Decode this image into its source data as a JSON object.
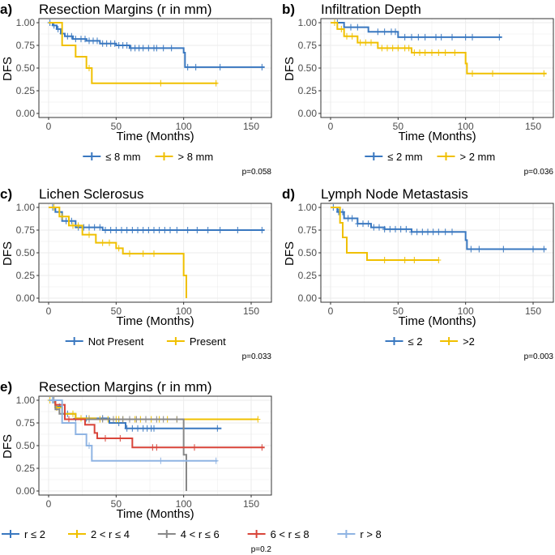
{
  "chart_data": [
    {
      "type": "line",
      "panel_label": "a)",
      "title": "Resection Margins (r in mm)",
      "xlabel": "Time (Months)",
      "ylabel": "DFS",
      "xlim": [
        0,
        160
      ],
      "ylim": [
        0,
        1
      ],
      "xticks": [
        0,
        50,
        100,
        150
      ],
      "yticks": [
        "0.00",
        "0.25",
        "0.50",
        "0.75",
        "1.00"
      ],
      "grid": true,
      "legend": "bottom",
      "p_value": "p=0.058",
      "series": [
        {
          "name": "≤ 8 mm",
          "color": "#3a78c0",
          "end": 160,
          "steps": [
            [
              0,
              1
            ],
            [
              3,
              0.97
            ],
            [
              6,
              0.93
            ],
            [
              9,
              0.88
            ],
            [
              12,
              0.85
            ],
            [
              18,
              0.82
            ],
            [
              28,
              0.8
            ],
            [
              38,
              0.77
            ],
            [
              50,
              0.75
            ],
            [
              60,
              0.72
            ],
            [
              100,
              0.67
            ],
            [
              101,
              0.51
            ]
          ],
          "censors": [
            1,
            4,
            7,
            10,
            14,
            17,
            20,
            24,
            27,
            30,
            33,
            36,
            40,
            43,
            46,
            49,
            52,
            55,
            58,
            61,
            64,
            67,
            70,
            74,
            78,
            80,
            85,
            91,
            103,
            109,
            127,
            158
          ]
        },
        {
          "name": "> 8 mm",
          "color": "#f0c000",
          "end": 125,
          "steps": [
            [
              0,
              1
            ],
            [
              10,
              0.75
            ],
            [
              20,
              0.625
            ],
            [
              28,
              0.5
            ],
            [
              32,
              0.333
            ]
          ],
          "censors": [
            30,
            83,
            124
          ]
        }
      ]
    },
    {
      "type": "line",
      "panel_label": "b)",
      "title": "Infiltration Depth",
      "xlabel": "Time (Months)",
      "ylabel": "DFS",
      "xlim": [
        0,
        160
      ],
      "ylim": [
        0,
        1
      ],
      "xticks": [
        0,
        50,
        100,
        150
      ],
      "yticks": [
        "0.00",
        "0.25",
        "0.50",
        "0.75",
        "1.00"
      ],
      "grid": true,
      "legend": "bottom",
      "p_value": "p=0.036",
      "series": [
        {
          "name": "≤ 2 mm",
          "color": "#3a78c0",
          "end": 127,
          "steps": [
            [
              0,
              1
            ],
            [
              10,
              0.95
            ],
            [
              28,
              0.9
            ],
            [
              50,
              0.84
            ]
          ],
          "censors": [
            5,
            15,
            20,
            35,
            40,
            45,
            48,
            55,
            60,
            65,
            70,
            78,
            82,
            90,
            100,
            105,
            125
          ]
        },
        {
          "name": "> 2 mm",
          "color": "#f0c000",
          "end": 160,
          "steps": [
            [
              0,
              1
            ],
            [
              5,
              0.93
            ],
            [
              10,
              0.85
            ],
            [
              20,
              0.78
            ],
            [
              35,
              0.72
            ],
            [
              60,
              0.67
            ],
            [
              100,
              0.55
            ],
            [
              101,
              0.44
            ]
          ],
          "censors": [
            3,
            8,
            12,
            16,
            22,
            26,
            30,
            38,
            42,
            46,
            50,
            55,
            58,
            62,
            66,
            70,
            75,
            80,
            85,
            92,
            105,
            120,
            158
          ]
        }
      ]
    },
    {
      "type": "line",
      "panel_label": "c)",
      "title": "Lichen Sclerosus",
      "xlabel": "Time (Months)",
      "ylabel": "DFS",
      "xlim": [
        0,
        160
      ],
      "ylim": [
        0,
        1
      ],
      "xticks": [
        0,
        50,
        100,
        150
      ],
      "yticks": [
        "0.00",
        "0.25",
        "0.50",
        "0.75",
        "1.00"
      ],
      "grid": true,
      "legend": "bottom",
      "p_value": "p=0.033",
      "series": [
        {
          "name": "Not Present",
          "color": "#3a78c0",
          "end": 160,
          "steps": [
            [
              0,
              1
            ],
            [
              5,
              0.95
            ],
            [
              10,
              0.85
            ],
            [
              20,
              0.78
            ],
            [
              40,
              0.75
            ]
          ],
          "censors": [
            3,
            8,
            13,
            17,
            22,
            26,
            30,
            34,
            38,
            42,
            46,
            50,
            54,
            58,
            62,
            66,
            70,
            74,
            78,
            82,
            86,
            90,
            95,
            103,
            110,
            118,
            127,
            140,
            158
          ]
        },
        {
          "name": "Present",
          "color": "#f0c000",
          "end": 102,
          "steps": [
            [
              0,
              1
            ],
            [
              8,
              0.9
            ],
            [
              15,
              0.8
            ],
            [
              25,
              0.7
            ],
            [
              35,
              0.61
            ],
            [
              50,
              0.55
            ],
            [
              55,
              0.49
            ],
            [
              100,
              0.25
            ],
            [
              102,
              0
            ]
          ],
          "censors": [
            4,
            10,
            18,
            22,
            30,
            40,
            45,
            52,
            60,
            70,
            78
          ]
        }
      ]
    },
    {
      "type": "line",
      "panel_label": "d)",
      "title": "Lymph Node Metastasis",
      "xlabel": "Time (Months)",
      "ylabel": "DFS",
      "xlim": [
        0,
        160
      ],
      "ylim": [
        0,
        1
      ],
      "xticks": [
        0,
        50,
        100,
        150
      ],
      "yticks": [
        "0.00",
        "0.25",
        "0.50",
        "0.75",
        "1.00"
      ],
      "grid": true,
      "legend": "bottom",
      "p_value": "p=0.003",
      "series": [
        {
          "name": "≤ 2",
          "color": "#3a78c0",
          "end": 160,
          "steps": [
            [
              0,
              1
            ],
            [
              5,
              0.95
            ],
            [
              10,
              0.88
            ],
            [
              20,
              0.82
            ],
            [
              30,
              0.78
            ],
            [
              40,
              0.76
            ],
            [
              60,
              0.73
            ],
            [
              100,
              0.64
            ],
            [
              101,
              0.54
            ]
          ],
          "censors": [
            2,
            6,
            9,
            13,
            16,
            20,
            24,
            28,
            32,
            36,
            40,
            44,
            48,
            52,
            56,
            60,
            64,
            68,
            72,
            76,
            80,
            85,
            90,
            104,
            110,
            128,
            150,
            158
          ]
        },
        {
          "name": ">2",
          "color": "#f0c000",
          "end": 80,
          "steps": [
            [
              0,
              1
            ],
            [
              7,
              0.83
            ],
            [
              9,
              0.67
            ],
            [
              12,
              0.5
            ],
            [
              27,
              0.42
            ]
          ],
          "censors": [
            40,
            55,
            62,
            80
          ]
        }
      ]
    },
    {
      "type": "line",
      "panel_label": "e)",
      "title": "Resection Margins (r in mm)",
      "xlabel": "Time (Months)",
      "ylabel": "DFS",
      "xlim": [
        0,
        160
      ],
      "ylim": [
        0,
        1
      ],
      "xticks": [
        0,
        50,
        100,
        150
      ],
      "yticks": [
        "0.00",
        "0.25",
        "0.50",
        "0.75",
        "1.00"
      ],
      "grid": true,
      "legend": "bottom",
      "p_value": "p=0.2",
      "series": [
        {
          "name": "r ≤ 2",
          "color": "#3a78c0",
          "end": 128,
          "steps": [
            [
              0,
              1
            ],
            [
              5,
              0.93
            ],
            [
              10,
              0.85
            ],
            [
              20,
              0.8
            ],
            [
              45,
              0.75
            ],
            [
              57,
              0.69
            ]
          ],
          "censors": [
            3,
            8,
            14,
            20,
            28,
            40,
            52,
            58,
            62,
            66,
            70,
            73,
            76,
            78,
            125
          ]
        },
        {
          "name": "2 < r ≤ 4",
          "color": "#f0c000",
          "end": 155,
          "steps": [
            [
              0,
              1
            ],
            [
              5,
              0.92
            ],
            [
              10,
              0.85
            ],
            [
              20,
              0.8
            ],
            [
              35,
              0.79
            ]
          ],
          "censors": [
            1,
            6,
            12,
            18,
            24,
            30,
            38,
            44,
            50,
            52,
            55,
            60,
            64,
            68,
            72,
            76,
            82,
            88,
            95,
            155
          ]
        },
        {
          "name": "4 < r ≤ 6",
          "color": "#888888",
          "end": 102,
          "steps": [
            [
              0,
              1
            ],
            [
              5,
              0.9
            ],
            [
              8,
              0.85
            ],
            [
              12,
              0.79
            ],
            [
              100,
              0.4
            ],
            [
              102,
              0
            ]
          ],
          "censors": [
            4,
            10,
            30,
            40,
            48,
            55,
            60,
            65,
            72,
            80,
            85,
            95
          ]
        },
        {
          "name": "6 < r ≤ 8",
          "color": "#d9453a",
          "end": 160,
          "steps": [
            [
              0,
              1
            ],
            [
              5,
              0.95
            ],
            [
              12,
              0.79
            ],
            [
              27,
              0.73
            ],
            [
              34,
              0.64
            ],
            [
              36,
              0.58
            ],
            [
              62,
              0.48
            ]
          ],
          "censors": [
            15,
            42,
            53,
            77,
            80,
            108,
            158
          ]
        },
        {
          "name": "r > 8",
          "color": "#8fb4e3",
          "end": 125,
          "steps": [
            [
              0,
              1
            ],
            [
              10,
              0.75
            ],
            [
              20,
              0.625
            ],
            [
              28,
              0.5
            ],
            [
              32,
              0.333
            ]
          ],
          "censors": [
            30,
            83,
            124
          ]
        }
      ]
    }
  ]
}
